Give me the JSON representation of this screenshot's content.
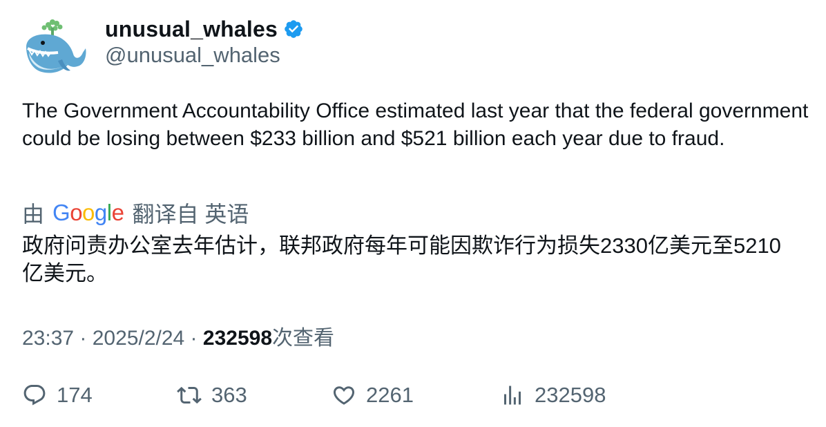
{
  "author": {
    "display_name": "unusual_whales",
    "handle": "@unusual_whales",
    "verified": true,
    "avatar_icon": "whale-icon"
  },
  "tweet": {
    "text": "The Government Accountability Office estimated last year that the federal government could be losing between $233 billion and $521 billion each year due to fraud."
  },
  "translation": {
    "by_label": "由",
    "google_letters": [
      {
        "ch": "G",
        "color": "#4285F4"
      },
      {
        "ch": "o",
        "color": "#EA4335"
      },
      {
        "ch": "o",
        "color": "#FBBC05"
      },
      {
        "ch": "g",
        "color": "#4285F4"
      },
      {
        "ch": "l",
        "color": "#34A853"
      },
      {
        "ch": "e",
        "color": "#EA4335"
      }
    ],
    "from_label": "翻译自 英语",
    "text": "政府问责办公室去年估计，联邦政府每年可能因欺诈行为损失2330亿美元至5210亿美元。"
  },
  "meta": {
    "time": "23:37",
    "sep1": " · ",
    "date": "2025/2/24",
    "sep2": " · ",
    "views_count": "232598",
    "views_label": "次查看"
  },
  "actions": {
    "replies": "174",
    "retweets": "363",
    "likes": "2261",
    "views": "232598"
  },
  "colors": {
    "text": "#0f1419",
    "secondary": "#536471",
    "verified": "#1d9bf0"
  }
}
